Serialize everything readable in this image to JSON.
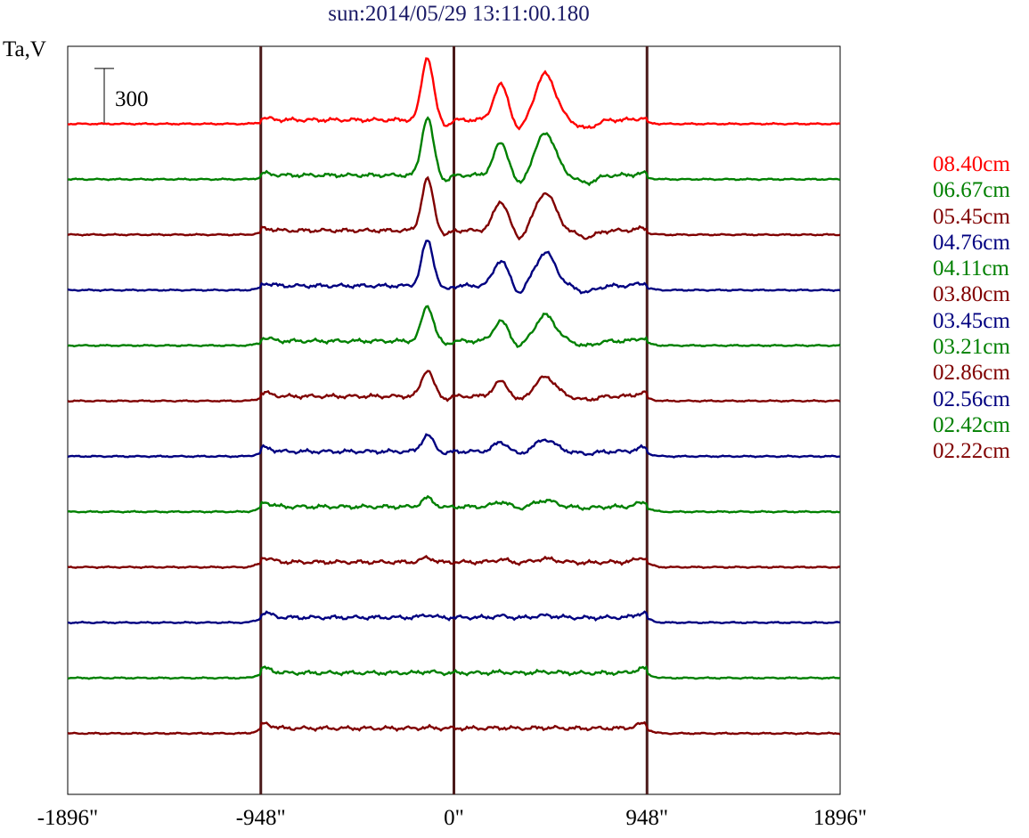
{
  "chart_data": {
    "type": "line",
    "title": "sun:2014/05/29 13:11:00.180",
    "ylabel": "Ta,V",
    "xlabel": "",
    "scale_bar_label": "300",
    "scale_bar_value": 300,
    "xlim": [
      -1896,
      1896
    ],
    "x_ticks": [
      -1896,
      -948,
      0,
      948,
      1896
    ],
    "x_tick_labels": [
      "-1896\"",
      "-948\"",
      "0\"",
      "948\"",
      "1896\""
    ],
    "vertical_lines": [
      -948,
      0,
      948
    ],
    "legend_placement": "right",
    "grid": false,
    "series": [
      {
        "name": "08.40cm",
        "color": "#ff0000",
        "offset": 0,
        "amp": 1.0
      },
      {
        "name": "06.67cm",
        "color": "#008000",
        "offset": -300,
        "amp": 0.92
      },
      {
        "name": "05.45cm",
        "color": "#800000",
        "offset": -600,
        "amp": 0.82
      },
      {
        "name": "04.76cm",
        "color": "#000080",
        "offset": -900,
        "amp": 0.72
      },
      {
        "name": "04.11cm",
        "color": "#008000",
        "offset": -1200,
        "amp": 0.56
      },
      {
        "name": "03.80cm",
        "color": "#800000",
        "offset": -1500,
        "amp": 0.42
      },
      {
        "name": "03.45cm",
        "color": "#000080",
        "offset": -1800,
        "amp": 0.26
      },
      {
        "name": "03.21cm",
        "color": "#008000",
        "offset": -2100,
        "amp": 0.14
      },
      {
        "name": "02.86cm",
        "color": "#800000",
        "offset": -2400,
        "amp": 0.07
      },
      {
        "name": "02.56cm",
        "color": "#000080",
        "offset": -2700,
        "amp": 0.04
      },
      {
        "name": "02.42cm",
        "color": "#008000",
        "offset": -3000,
        "amp": 0.02
      },
      {
        "name": "02.22cm",
        "color": "#800000",
        "offset": -3300,
        "amp": 0.01
      }
    ],
    "ylim": [
      -3630,
      420
    ]
  }
}
